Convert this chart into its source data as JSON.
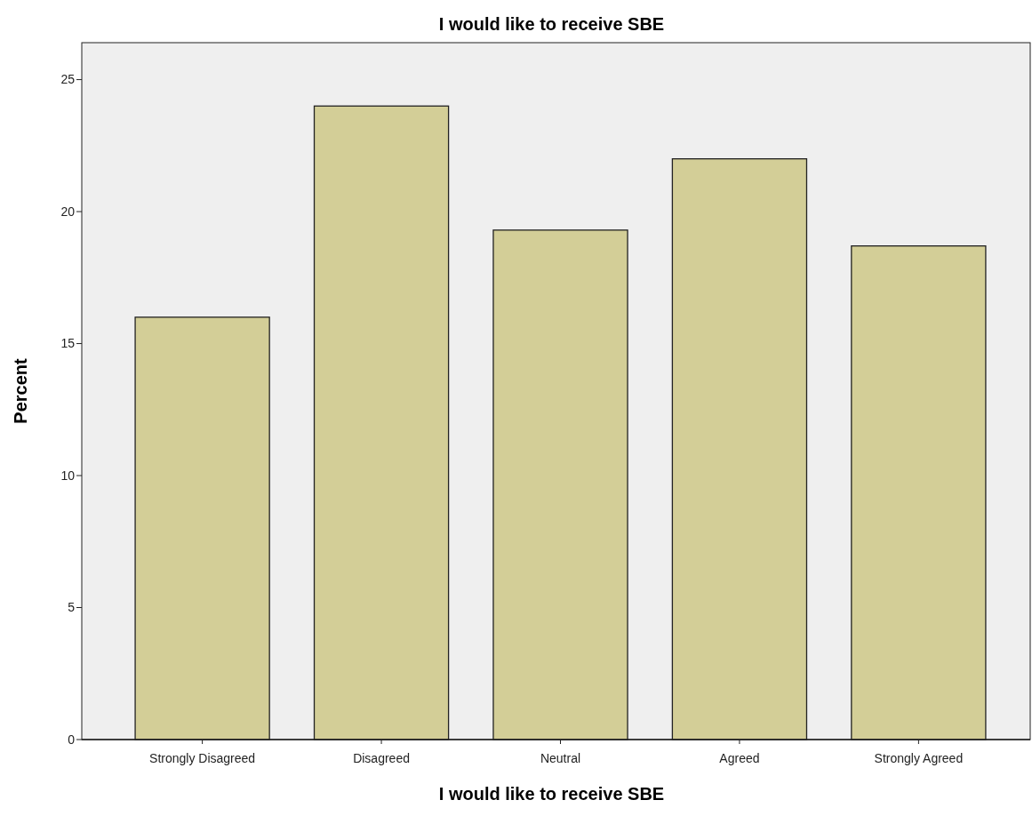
{
  "chart_data": {
    "type": "bar",
    "title": "I would like to receive SBE",
    "xlabel": "I would like to receive SBE",
    "ylabel": "Percent",
    "categories": [
      "Strongly Disagreed",
      "Disagreed",
      "Neutral",
      "Agreed",
      "Strongly Agreed"
    ],
    "values": [
      16.0,
      24.0,
      19.3,
      22.0,
      18.7
    ],
    "color": "#d3ce97",
    "ylim": [
      0,
      26.4
    ],
    "yticks": [
      0,
      5,
      10,
      15,
      20,
      25
    ],
    "grid": false
  }
}
